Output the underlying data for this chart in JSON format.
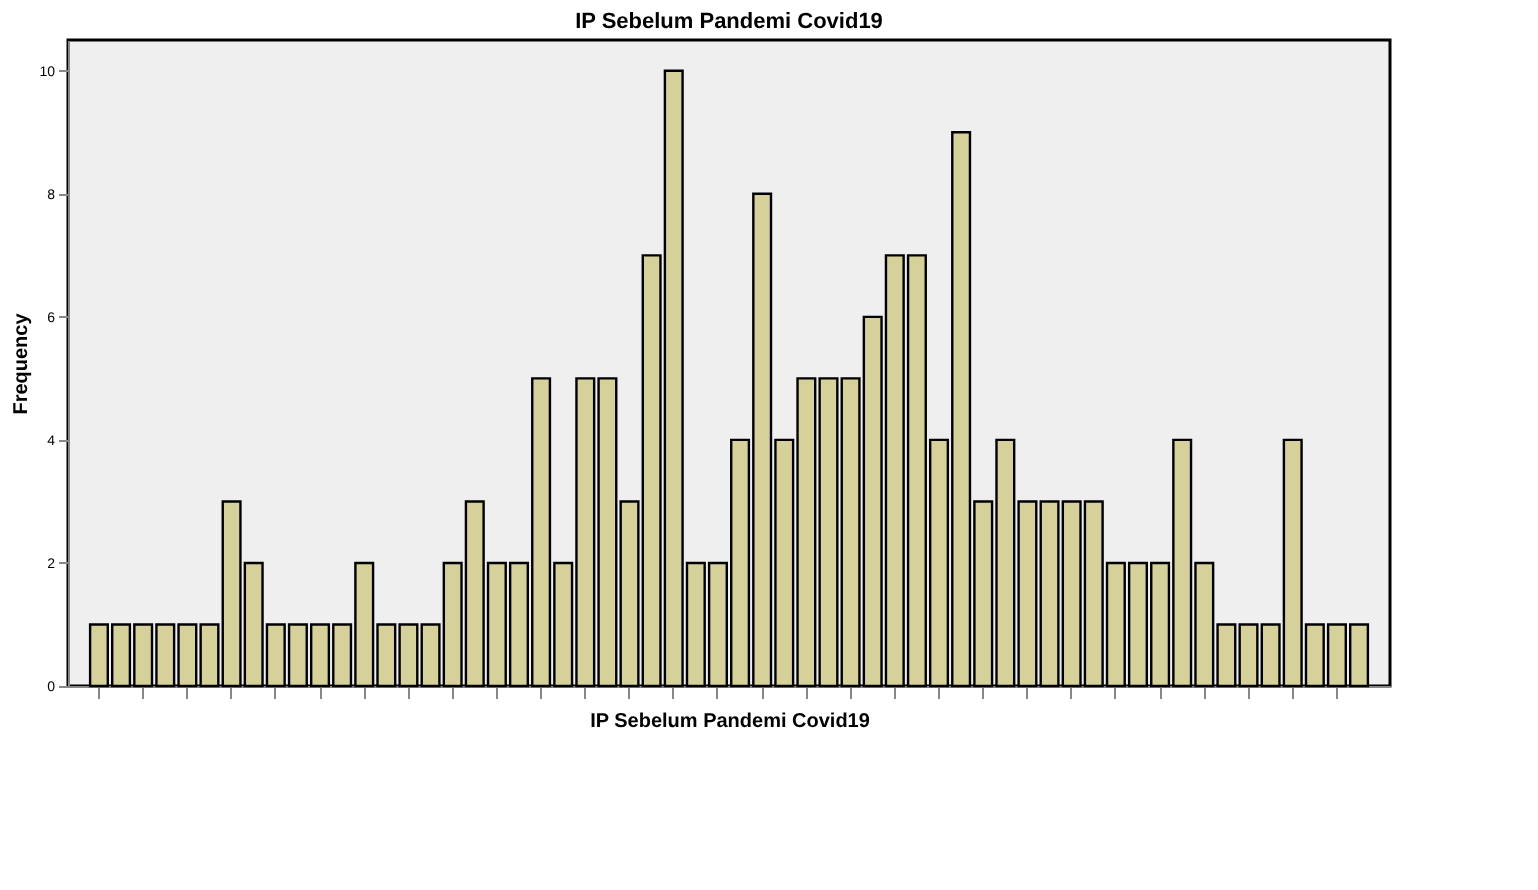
{
  "chart_data": {
    "type": "bar",
    "title": "IP Sebelum Pandemi Covid19",
    "xlabel": "IP Sebelum Pandemi Covid19",
    "ylabel": "Frequency",
    "categories": [
      null,
      null,
      null,
      null,
      null,
      null,
      null,
      null,
      null,
      null,
      null,
      null,
      null,
      null,
      null,
      null,
      null,
      null,
      null,
      null,
      null,
      null,
      null,
      null,
      null,
      null,
      null,
      null,
      null,
      null,
      null,
      null,
      null,
      null,
      null,
      null,
      null,
      null,
      null,
      null,
      null,
      null,
      null,
      null,
      null,
      null,
      null,
      null,
      null,
      null,
      null,
      null,
      null,
      null,
      null,
      null,
      null,
      null
    ],
    "values": [
      1,
      1,
      1,
      1,
      1,
      1,
      3,
      2,
      1,
      1,
      1,
      1,
      2,
      1,
      1,
      1,
      2,
      3,
      2,
      2,
      5,
      2,
      5,
      5,
      3,
      7,
      10,
      2,
      2,
      4,
      8,
      4,
      5,
      5,
      5,
      6,
      7,
      7,
      4,
      9,
      3,
      4,
      3,
      3,
      3,
      3,
      2,
      2,
      2,
      4,
      2,
      1,
      1,
      1,
      4,
      1,
      1,
      1
    ],
    "color": "#d6d09a",
    "ylim": [
      0,
      10.5
    ],
    "yticks": [
      0,
      2,
      4,
      6,
      8,
      10
    ],
    "grid": false
  }
}
